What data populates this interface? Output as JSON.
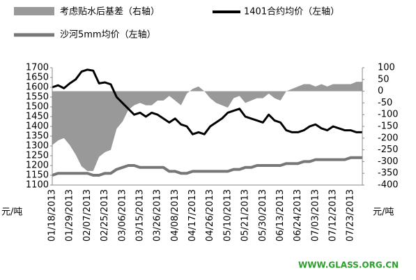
{
  "chart_data": {
    "type": "combo",
    "categories": [
      "01/18/2013",
      null,
      null,
      "01/29/2013",
      null,
      null,
      "02/07/2013",
      null,
      null,
      "02/25/2013",
      null,
      null,
      "03/06/2013",
      null,
      null,
      "03/15/2013",
      null,
      null,
      "03/26/2013",
      null,
      null,
      "04/08/2013",
      null,
      null,
      "04/17/2013",
      null,
      null,
      "04/26/2013",
      null,
      null,
      "05/10/2013",
      null,
      null,
      "05/21/2013",
      null,
      null,
      "05/30/2013",
      null,
      null,
      "06/13/2013",
      null,
      null,
      "06/24/2013",
      null,
      null,
      "07/03/2013",
      null,
      null,
      "07/12/2013",
      null,
      null,
      "07/23/2013",
      null,
      null
    ],
    "series": [
      {
        "name": "考虑贴水后基差（右轴）",
        "kind": "area",
        "axis": "y2",
        "color": "#999999",
        "values": [
          -230,
          -210,
          -200,
          -230,
          -270,
          -320,
          -340,
          -340,
          -280,
          -260,
          -250,
          -160,
          -130,
          -80,
          -60,
          -50,
          -60,
          -60,
          -40,
          -40,
          -20,
          -40,
          -60,
          -10,
          10,
          20,
          0,
          -30,
          -50,
          -60,
          -70,
          -30,
          -20,
          -50,
          -40,
          -30,
          -30,
          -10,
          -30,
          -40,
          0,
          10,
          20,
          30,
          30,
          20,
          30,
          20,
          30,
          30,
          30,
          30,
          40,
          40
        ]
      },
      {
        "name": "1401合约均价（左轴）",
        "kind": "line",
        "color": "#000000",
        "values": [
          1600,
          1610,
          1595,
          1620,
          1640,
          1680,
          1690,
          1685,
          1620,
          1625,
          1615,
          1550,
          1520,
          1490,
          1460,
          1470,
          1450,
          1470,
          1460,
          1440,
          1420,
          1440,
          1410,
          1400,
          1360,
          1370,
          1360,
          1400,
          1420,
          1440,
          1470,
          1480,
          1490,
          1450,
          1440,
          1430,
          1420,
          1460,
          1430,
          1420,
          1380,
          1370,
          1370,
          1380,
          1400,
          1410,
          1390,
          1380,
          1400,
          1390,
          1380,
          1380,
          1370,
          1370
        ]
      },
      {
        "name": "沙河5mm均价（左轴）",
        "kind": "line",
        "color": "#777777",
        "values": [
          1150,
          1160,
          1160,
          1160,
          1160,
          1160,
          1160,
          1150,
          1150,
          1160,
          1160,
          1180,
          1190,
          1200,
          1200,
          1190,
          1190,
          1190,
          1190,
          1190,
          1170,
          1170,
          1160,
          1160,
          1170,
          1170,
          1170,
          1170,
          1170,
          1170,
          1170,
          1180,
          1180,
          1190,
          1190,
          1200,
          1200,
          1200,
          1200,
          1200,
          1210,
          1210,
          1210,
          1220,
          1220,
          1230,
          1230,
          1230,
          1230,
          1230,
          1230,
          1240,
          1240,
          1240
        ]
      }
    ],
    "ylim": [
      1100,
      1700
    ],
    "yticks": [
      1100,
      1150,
      1200,
      1250,
      1300,
      1350,
      1400,
      1450,
      1500,
      1550,
      1600,
      1650,
      1700
    ],
    "y2lim": [
      -400,
      100
    ],
    "y2ticks": [
      -400,
      -350,
      -300,
      -250,
      -200,
      -150,
      -100,
      -50,
      0,
      50,
      100
    ],
    "y_unit": "元/吨",
    "y2_unit": "元/吨",
    "watermark": "WWW.GLASS.ORG.CN"
  }
}
